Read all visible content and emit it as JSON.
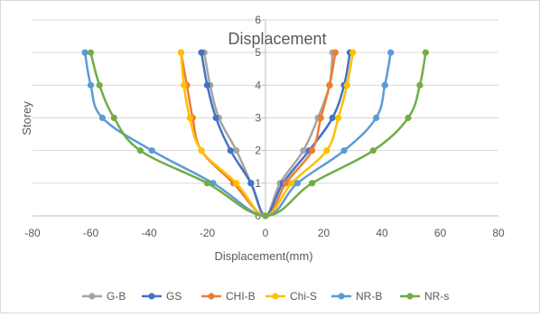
{
  "chart_data": {
    "type": "line",
    "title": "Displacement",
    "xlabel": "Displacement(mm)",
    "ylabel": "Storey",
    "xlim": [
      -80,
      80
    ],
    "ylim": [
      0,
      6
    ],
    "x_ticks": [
      "-80",
      "-60",
      "-40",
      "-20",
      "0",
      "20",
      "40",
      "60",
      "80"
    ],
    "y_ticks": [
      "0",
      "1",
      "2",
      "3",
      "4",
      "5",
      "6"
    ],
    "grid": "horizontal",
    "legend": "bottom",
    "series": [
      {
        "name": "G-B",
        "color": "#a5a5a5",
        "points": [
          [
            -21,
            5
          ],
          [
            -19,
            4
          ],
          [
            -16,
            3
          ],
          [
            -10,
            2
          ],
          [
            -5,
            1
          ],
          [
            0,
            0
          ],
          [
            5,
            1
          ],
          [
            13,
            2
          ],
          [
            18,
            3
          ],
          [
            22,
            4
          ],
          [
            23,
            5
          ]
        ]
      },
      {
        "name": "GS",
        "color": "#4472c4",
        "points": [
          [
            -22,
            5
          ],
          [
            -20,
            4
          ],
          [
            -17,
            3
          ],
          [
            -12,
            2
          ],
          [
            -5,
            1
          ],
          [
            0,
            0
          ],
          [
            6,
            1
          ],
          [
            15,
            2
          ],
          [
            23,
            3
          ],
          [
            27,
            4
          ],
          [
            29,
            5
          ]
        ]
      },
      {
        "name": "CHI-B",
        "color": "#ed7d31",
        "points": [
          [
            -29,
            5
          ],
          [
            -27,
            4
          ],
          [
            -25,
            3
          ],
          [
            -22,
            2
          ],
          [
            -11,
            1
          ],
          [
            0,
            0
          ],
          [
            7,
            1
          ],
          [
            16,
            2
          ],
          [
            19,
            3
          ],
          [
            22,
            4
          ],
          [
            24,
            5
          ]
        ]
      },
      {
        "name": "Chi-S",
        "color": "#ffc000",
        "points": [
          [
            -29,
            5
          ],
          [
            -28,
            4
          ],
          [
            -26,
            3
          ],
          [
            -22,
            2
          ],
          [
            -10,
            1
          ],
          [
            0,
            0
          ],
          [
            9,
            1
          ],
          [
            21,
            2
          ],
          [
            25,
            3
          ],
          [
            28,
            4
          ],
          [
            30,
            5
          ]
        ]
      },
      {
        "name": "NR-B",
        "color": "#5b9bd5",
        "points": [
          [
            -62,
            5
          ],
          [
            -60,
            4
          ],
          [
            -56,
            3
          ],
          [
            -39,
            2
          ],
          [
            -18,
            1
          ],
          [
            0,
            0
          ],
          [
            11,
            1
          ],
          [
            27,
            2
          ],
          [
            38,
            3
          ],
          [
            41,
            4
          ],
          [
            43,
            5
          ]
        ]
      },
      {
        "name": "NR-s",
        "color": "#70ad47",
        "points": [
          [
            -60,
            5
          ],
          [
            -57,
            4
          ],
          [
            -52,
            3
          ],
          [
            -43,
            2
          ],
          [
            -20,
            1
          ],
          [
            0,
            0
          ],
          [
            16,
            1
          ],
          [
            37,
            2
          ],
          [
            49,
            3
          ],
          [
            53,
            4
          ],
          [
            55,
            5
          ]
        ]
      }
    ]
  }
}
